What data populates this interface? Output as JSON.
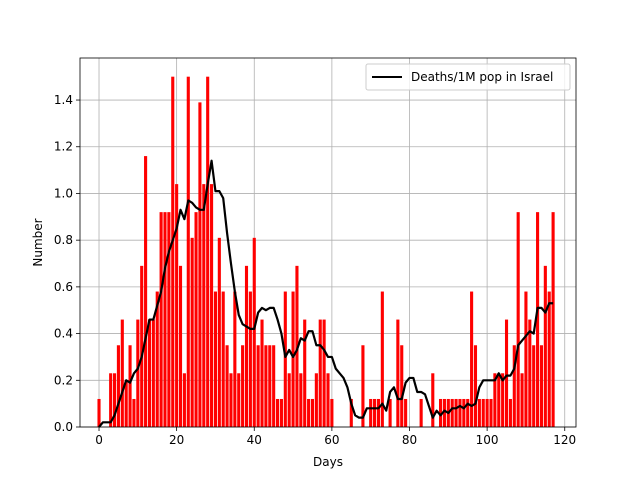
{
  "chart_data": {
    "type": "bar",
    "title": "",
    "xlabel": "Days",
    "ylabel": "Number",
    "xlim": [
      -4.9,
      122.9
    ],
    "ylim": [
      0,
      1.58
    ],
    "xticks": [
      0,
      20,
      40,
      60,
      80,
      100,
      120
    ],
    "yticks": [
      0.0,
      0.2,
      0.4,
      0.6,
      0.8,
      1.0,
      1.2,
      1.4
    ],
    "grid": true,
    "legend_position": "top-right",
    "colors": {
      "bars": "#ff0000",
      "line": "#000000",
      "grid": "#b0b0b0"
    },
    "x": [
      0,
      1,
      2,
      3,
      4,
      5,
      6,
      7,
      8,
      9,
      10,
      11,
      12,
      13,
      14,
      15,
      16,
      17,
      18,
      19,
      20,
      21,
      22,
      23,
      24,
      25,
      26,
      27,
      28,
      29,
      30,
      31,
      32,
      33,
      34,
      35,
      36,
      37,
      38,
      39,
      40,
      41,
      42,
      43,
      44,
      45,
      46,
      47,
      48,
      49,
      50,
      51,
      52,
      53,
      54,
      55,
      56,
      57,
      58,
      59,
      60,
      61,
      62,
      63,
      64,
      65,
      66,
      67,
      68,
      69,
      70,
      71,
      72,
      73,
      74,
      75,
      76,
      77,
      78,
      79,
      80,
      81,
      82,
      83,
      84,
      85,
      86,
      87,
      88,
      89,
      90,
      91,
      92,
      93,
      94,
      95,
      96,
      97,
      98,
      99,
      100,
      101,
      102,
      103,
      104,
      105,
      106,
      107,
      108,
      109,
      110,
      111,
      112,
      113,
      114,
      115,
      116,
      117
    ],
    "bar_values": [
      0.12,
      0,
      0,
      0.23,
      0.23,
      0.35,
      0.46,
      0.2,
      0.35,
      0.12,
      0.46,
      0.69,
      1.16,
      0.46,
      0.46,
      0.58,
      0.92,
      0.92,
      0.92,
      1.5,
      1.04,
      0.69,
      0.23,
      1.5,
      0.81,
      0.92,
      1.39,
      1.04,
      1.5,
      1.04,
      0.58,
      0.81,
      0.58,
      0.35,
      0.23,
      0.58,
      0.23,
      0.35,
      0.69,
      0.58,
      0.81,
      0.35,
      0.46,
      0.35,
      0.35,
      0.35,
      0.12,
      0.12,
      0.58,
      0.23,
      0.58,
      0.69,
      0.23,
      0.46,
      0.12,
      0.12,
      0.23,
      0.46,
      0.46,
      0.23,
      0.12,
      0,
      0,
      0,
      0,
      0.12,
      0,
      0,
      0.35,
      0,
      0.12,
      0.12,
      0.12,
      0.58,
      0,
      0.12,
      0,
      0.46,
      0.35,
      0.12,
      0,
      0,
      0,
      0.12,
      0,
      0,
      0.23,
      0,
      0.12,
      0.12,
      0.12,
      0.12,
      0.12,
      0.12,
      0.12,
      0.12,
      0.58,
      0.35,
      0.12,
      0.12,
      0.12,
      0.12,
      0.23,
      0.23,
      0.23,
      0.46,
      0.12,
      0.35,
      0.92,
      0.23,
      0.58,
      0.46,
      0.35,
      0.92,
      0.35,
      0.69,
      0.58,
      0.92
    ],
    "series": [
      {
        "name": "Deaths/1M pop in Israel",
        "type": "line",
        "values": [
          0,
          0.02,
          0.02,
          0.02,
          0.05,
          0.1,
          0.15,
          0.2,
          0.19,
          0.23,
          0.25,
          0.3,
          0.38,
          0.46,
          0.46,
          0.52,
          0.58,
          0.68,
          0.75,
          0.8,
          0.85,
          0.93,
          0.89,
          0.97,
          0.96,
          0.94,
          0.93,
          0.93,
          1.04,
          1.14,
          1.01,
          1.01,
          0.98,
          0.83,
          0.7,
          0.58,
          0.48,
          0.44,
          0.43,
          0.42,
          0.42,
          0.49,
          0.51,
          0.5,
          0.51,
          0.51,
          0.46,
          0.4,
          0.3,
          0.33,
          0.3,
          0.33,
          0.38,
          0.37,
          0.41,
          0.41,
          0.35,
          0.35,
          0.33,
          0.3,
          0.3,
          0.25,
          0.23,
          0.21,
          0.17,
          0.1,
          0.05,
          0.04,
          0.04,
          0.08,
          0.08,
          0.08,
          0.08,
          0.1,
          0.07,
          0.15,
          0.17,
          0.12,
          0.12,
          0.19,
          0.21,
          0.21,
          0.15,
          0.15,
          0.14,
          0.09,
          0.04,
          0.07,
          0.05,
          0.07,
          0.06,
          0.08,
          0.08,
          0.09,
          0.08,
          0.1,
          0.09,
          0.1,
          0.17,
          0.2,
          0.2,
          0.2,
          0.2,
          0.23,
          0.2,
          0.22,
          0.22,
          0.25,
          0.35,
          0.37,
          0.39,
          0.41,
          0.4,
          0.51,
          0.51,
          0.49,
          0.53,
          0.53
        ]
      }
    ]
  }
}
